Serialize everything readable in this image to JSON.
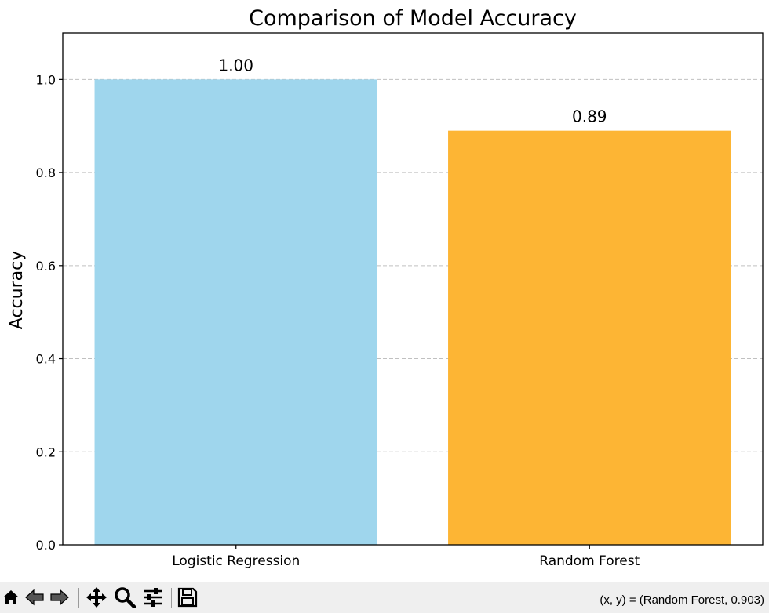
{
  "chart_data": {
    "type": "bar",
    "title": "Comparison of Model Accuracy",
    "xlabel": "",
    "ylabel": "Accuracy",
    "categories": [
      "Logistic Regression",
      "Random Forest"
    ],
    "values": [
      1.0,
      0.89
    ],
    "value_labels": [
      "1.00",
      "0.89"
    ],
    "colors": [
      "#9fd6ed",
      "#fdb534"
    ],
    "ylim": [
      0,
      1.1
    ],
    "yticks": [
      0.0,
      0.2,
      0.4,
      0.6,
      0.8,
      1.0
    ],
    "ytick_labels": [
      "0.0",
      "0.2",
      "0.4",
      "0.6",
      "0.8",
      "1.0"
    ],
    "grid": "y-dashed",
    "legend": "none"
  },
  "toolbar": {
    "buttons": [
      {
        "name": "home-button",
        "icon": "home-icon",
        "tip": "Reset original view"
      },
      {
        "name": "back-button",
        "icon": "arrow-left-icon",
        "tip": "Back"
      },
      {
        "name": "forward-button",
        "icon": "arrow-right-icon",
        "tip": "Forward"
      },
      {
        "name": "pan-button",
        "icon": "move-icon",
        "tip": "Pan"
      },
      {
        "name": "zoom-button",
        "icon": "magnifier-icon",
        "tip": "Zoom"
      },
      {
        "name": "configure-button",
        "icon": "sliders-icon",
        "tip": "Configure subplots"
      },
      {
        "name": "save-button",
        "icon": "floppy-icon",
        "tip": "Save"
      }
    ],
    "coords": "(x, y) = (Random Forest, 0.903)"
  }
}
